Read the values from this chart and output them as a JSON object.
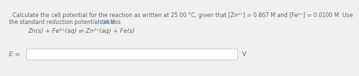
{
  "bg_color": "#f0f0f0",
  "text_color": "#666666",
  "link_color": "#5588cc",
  "box_edge_color": "#cccccc",
  "box_face_color": "#ffffff",
  "line1_pre_dot": ". ",
  "line1_main": "Calculate the cell potential for the reaction as written at 25.00 °C, given that [Zn²⁺] = 0.867 M and [Fe²⁺] = 0.0100 M. Use",
  "line2_pre": "the standard reduction potentials in this ",
  "line2_link": "table.",
  "reaction": "Zn(s) + Fe²⁺(aq) ⇌ Zn²⁺(aq) + Fe(s)",
  "label_E": "E =",
  "label_V": "V",
  "fontsize_text": 5.8,
  "fontsize_reaction": 6.2,
  "fontsize_EV": 6.5
}
